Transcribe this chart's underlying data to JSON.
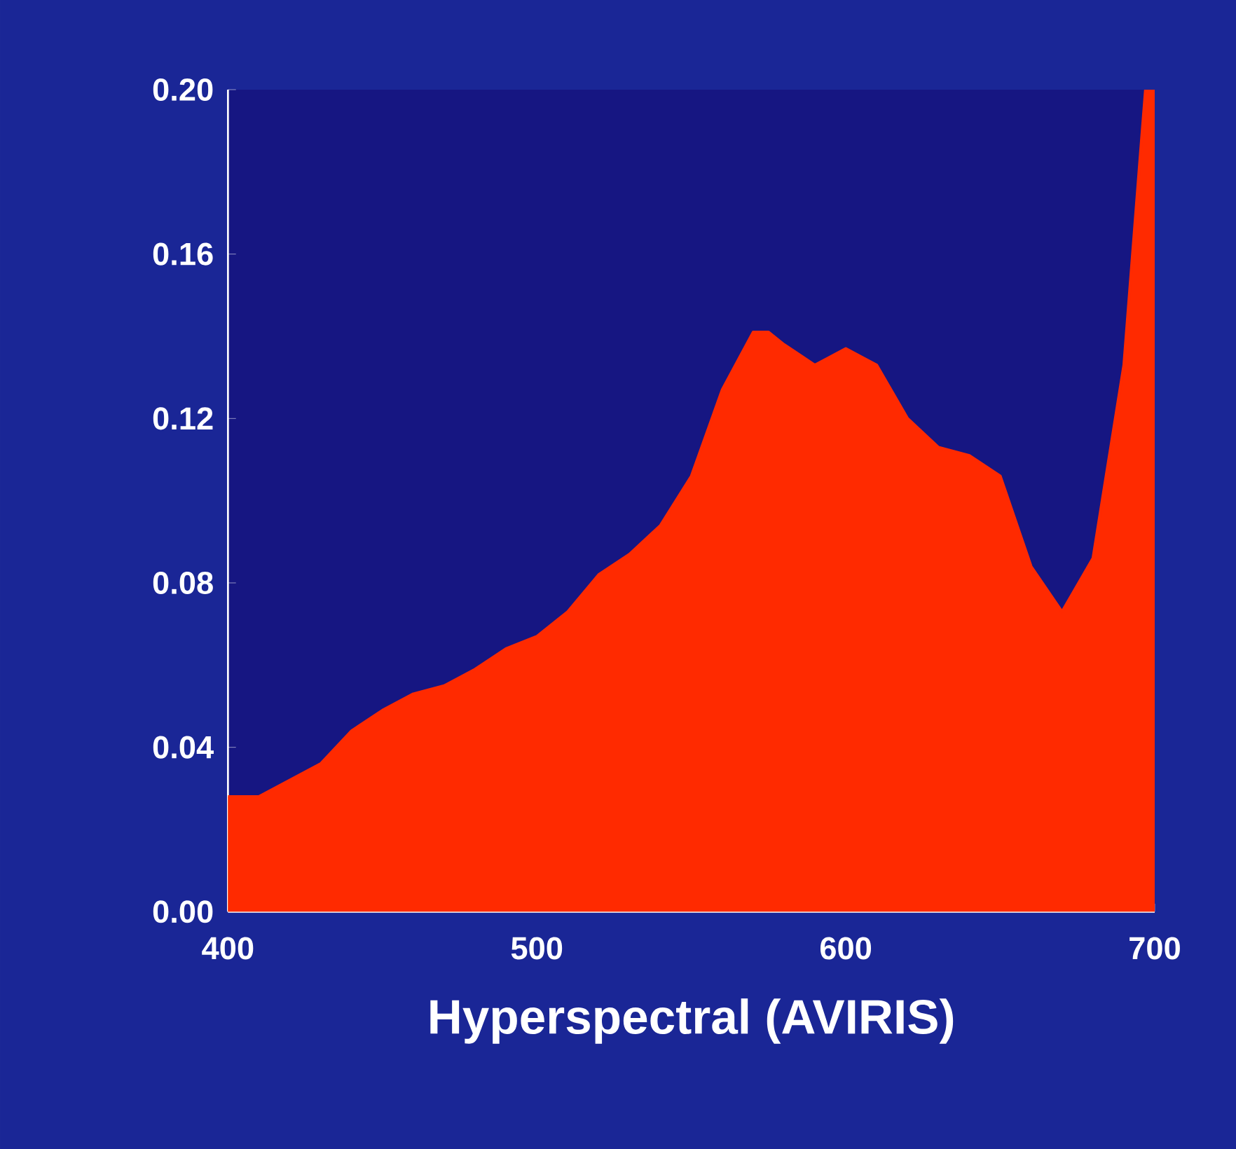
{
  "chart_data": {
    "type": "area",
    "xlabel": "Hyperspectral (AVIRIS)",
    "x": [
      400,
      410,
      420,
      430,
      440,
      450,
      460,
      470,
      480,
      490,
      500,
      510,
      520,
      530,
      540,
      550,
      560,
      570,
      575,
      580,
      590,
      600,
      610,
      620,
      630,
      640,
      650,
      660,
      670,
      680,
      690,
      695,
      697,
      700
    ],
    "series": [
      {
        "color": "#ff2a00",
        "values": [
          0.028,
          0.028,
          0.032,
          0.036,
          0.044,
          0.049,
          0.053,
          0.055,
          0.059,
          0.064,
          0.067,
          0.073,
          0.082,
          0.087,
          0.094,
          0.106,
          0.127,
          0.141,
          0.141,
          0.138,
          0.133,
          0.137,
          0.133,
          0.12,
          0.113,
          0.111,
          0.106,
          0.084,
          0.073,
          0.086,
          0.133,
          0.181,
          0.2,
          0.2
        ]
      }
    ],
    "xlim": [
      400,
      700
    ],
    "ylim": [
      0,
      0.2
    ],
    "xticks": [
      400,
      500,
      600,
      700
    ],
    "yticks": [
      {
        "value": 0,
        "label": "0.00"
      },
      {
        "value": 0.04,
        "label": "0.04"
      },
      {
        "value": 0.08,
        "label": "0.08"
      },
      {
        "value": 0.12,
        "label": "0.12"
      },
      {
        "value": 0.16,
        "label": "0.16"
      },
      {
        "value": 0.2,
        "label": "0.20"
      }
    ],
    "grid": false,
    "marker": "none",
    "line_style": "solid"
  }
}
